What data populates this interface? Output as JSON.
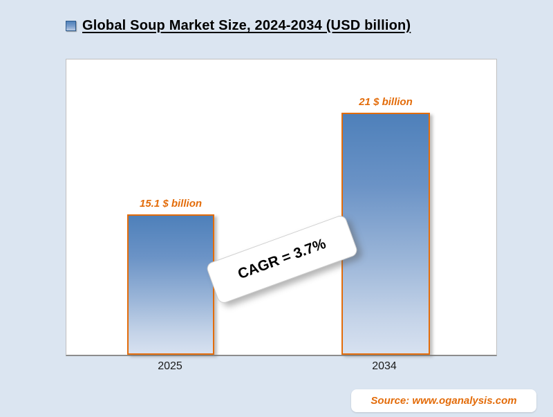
{
  "chart_data": {
    "type": "bar",
    "title": "Global Soup Market Size, 2024-2034 (USD billion)",
    "categories": [
      "2025",
      "2034"
    ],
    "values": [
      15.1,
      21
    ],
    "value_labels": [
      "15.1 $ billion",
      "21 $ billion"
    ],
    "unit": "USD billion",
    "xlabel": "",
    "ylabel": "",
    "ylim": [
      7,
      24
    ],
    "grid": false,
    "legend_position": "none",
    "annotations": [
      "CAGR = 3.7%"
    ]
  },
  "annotation": {
    "cagr": "CAGR = 3.7%"
  },
  "source": {
    "label": "Source: www.oganalysis.com"
  },
  "colors": {
    "background": "#dbe5f1",
    "bar_top": "#4e80ba",
    "bar_bottom": "#d7e1f0",
    "bar_border": "#e36c0a",
    "accent_orange": "#e36c0a",
    "title_text": "#000000",
    "plot_background": "#ffffff"
  }
}
